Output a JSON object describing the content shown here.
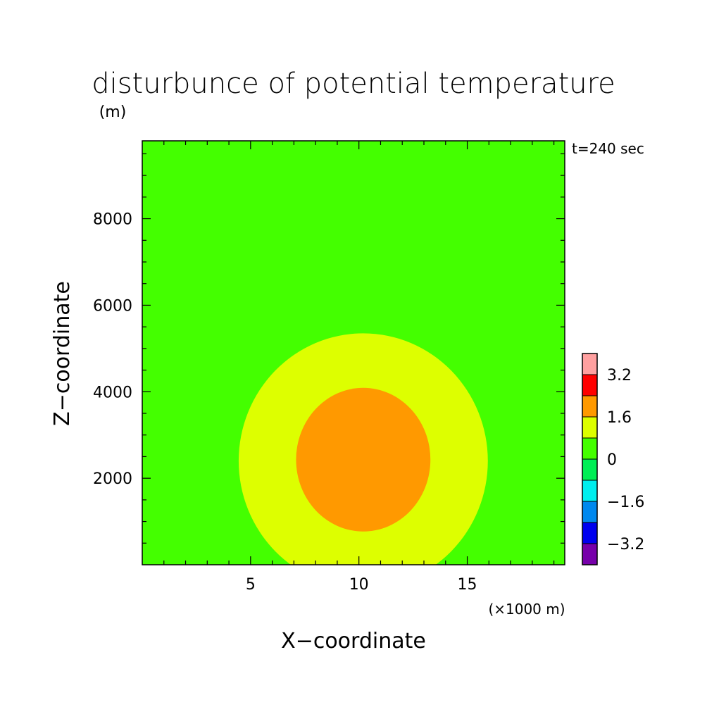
{
  "chart_data": {
    "type": "heatmap",
    "title": "disturbunce of potential temperature",
    "z_unit_label": "(m)",
    "x_unit_label": "(×1000 m)",
    "xlabel": "X−coordinate",
    "ylabel": "Z−coordinate",
    "time_label": "t=240 sec",
    "xlim": [
      0,
      19.5
    ],
    "ylim": [
      0,
      9800
    ],
    "x_ticks": [
      {
        "value": 5,
        "label": "5"
      },
      {
        "value": 10,
        "label": "10"
      },
      {
        "value": 15,
        "label": "15"
      }
    ],
    "y_ticks": [
      {
        "value": 2000,
        "label": "2000"
      },
      {
        "value": 4000,
        "label": "4000"
      },
      {
        "value": 6000,
        "label": "6000"
      },
      {
        "value": 8000,
        "label": "8000"
      }
    ],
    "background": {
      "range": [
        0,
        0.8
      ],
      "color": "#44ff00"
    },
    "contours": [
      {
        "name": "0.8 to 1.6",
        "center_x": 10.2,
        "center_z": 2400,
        "radius_x": 5.75,
        "radius_z": 2950,
        "color": "#ddff00"
      },
      {
        "name": "1.6 to 2.4",
        "center_x": 10.2,
        "center_z": 2430,
        "radius_x": 3.1,
        "radius_z": 1660,
        "color": "#ff9900"
      }
    ],
    "colorbar": {
      "min": -4.0,
      "max": 4.0,
      "colors": [
        "#7700aa",
        "#0000ee",
        "#0088ee",
        "#00eeee",
        "#00ee55",
        "#44ff00",
        "#ddff00",
        "#ff9900",
        "#ff0000",
        "#ffa0a0"
      ],
      "tick_labels": [
        {
          "value": -3.2,
          "label": "−3.2"
        },
        {
          "value": -1.6,
          "label": "−1.6"
        },
        {
          "value": 0,
          "label": "0"
        },
        {
          "value": 1.6,
          "label": "1.6"
        },
        {
          "value": 3.2,
          "label": "3.2"
        }
      ]
    }
  }
}
